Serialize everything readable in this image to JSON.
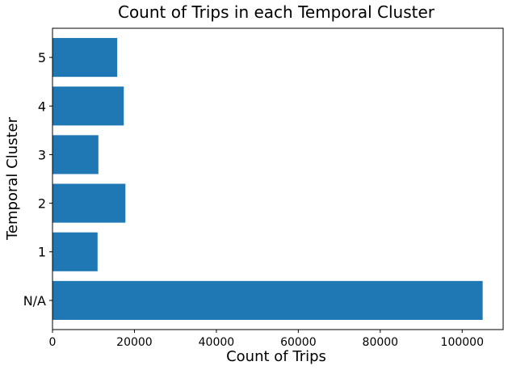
{
  "chart_data": {
    "type": "bar",
    "orientation": "horizontal",
    "title": "Count of Trips in each Temporal Cluster",
    "xlabel": "Count of Trips",
    "ylabel": "Temporal Cluster",
    "categories": [
      "N/A",
      "1",
      "2",
      "3",
      "4",
      "5"
    ],
    "values": [
      105000,
      11000,
      17800,
      11200,
      17400,
      15800
    ],
    "xlim": [
      0,
      110000
    ],
    "xticks": [
      0,
      20000,
      40000,
      60000,
      80000,
      100000
    ],
    "xtick_labels": [
      "0",
      "20000",
      "40000",
      "60000",
      "80000",
      "100000"
    ],
    "bar_color": "#1f77b4",
    "grid": false
  }
}
